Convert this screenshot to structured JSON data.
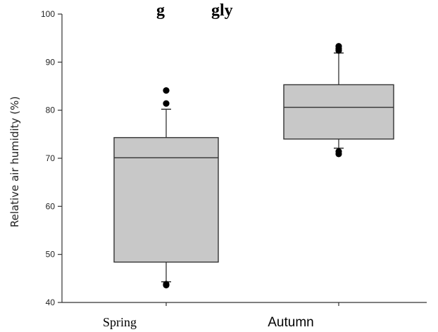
{
  "chart_data": {
    "type": "box",
    "title": "",
    "visible_title_fragment": "g           gly",
    "ylabel": "Relative air humidity (%)",
    "xlabel": "",
    "ylim": [
      40,
      100
    ],
    "yticks": [
      40,
      50,
      60,
      70,
      80,
      90,
      100
    ],
    "grid": false,
    "legend": "none",
    "box_fill": "#c8c8c8",
    "categories": [
      "Spring",
      "Autumn"
    ],
    "boxes": [
      {
        "category": "Spring",
        "whisker_low": 44.3,
        "q1": 48.4,
        "median": 70.1,
        "q3": 74.3,
        "whisker_high": 80.2,
        "outliers": [
          43.8,
          43.6,
          81.4,
          84.1
        ]
      },
      {
        "category": "Autumn",
        "whisker_low": 72.1,
        "q1": 74.0,
        "median": 80.6,
        "q3": 85.3,
        "whisker_high": 91.9,
        "outliers": [
          71.4,
          70.9,
          92.4,
          92.8,
          93.3
        ]
      }
    ]
  }
}
